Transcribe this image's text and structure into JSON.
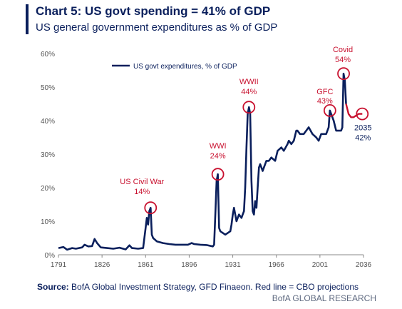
{
  "header": {
    "title": "Chart 5: US govt spending = 41% of GDP",
    "subtitle": "US general government expenditures as % of GDP"
  },
  "footer": {
    "source_label": "Source:",
    "source_text": " BofA Global Investment Strategy, GFD Finaeon. Red line = CBO projections",
    "brand": "BofA GLOBAL RESEARCH"
  },
  "colors": {
    "series": "#0a1f5c",
    "projection": "#c8102e",
    "annotation": "#c8102e",
    "axis": "#888888"
  },
  "chart_data": {
    "type": "line",
    "title": "Chart 5: US govt spending = 41% of GDP",
    "subtitle": "US general government expenditures as % of GDP",
    "xlim": [
      1791,
      2036
    ],
    "ylim": [
      0,
      60
    ],
    "x_ticks": [
      "1791",
      "1826",
      "1861",
      "1896",
      "1931",
      "1966",
      "2001",
      "2036"
    ],
    "y_ticks": [
      "0%",
      "10%",
      "20%",
      "30%",
      "40%",
      "50%",
      "60%"
    ],
    "grid": false,
    "legend": {
      "position": "top-left",
      "entries": [
        "US govt expenditures, % of GDP"
      ]
    },
    "series": [
      {
        "name": "US govt expenditures, % of GDP",
        "color": "#0a1f5c",
        "points": [
          [
            1791,
            2
          ],
          [
            1795,
            2.3
          ],
          [
            1798,
            1.5
          ],
          [
            1802,
            2
          ],
          [
            1805,
            1.8
          ],
          [
            1810,
            2.2
          ],
          [
            1812,
            3
          ],
          [
            1815,
            2.5
          ],
          [
            1818,
            2.6
          ],
          [
            1820,
            4.7
          ],
          [
            1822,
            3.5
          ],
          [
            1825,
            2.2
          ],
          [
            1830,
            2
          ],
          [
            1835,
            1.8
          ],
          [
            1840,
            2.1
          ],
          [
            1845,
            1.6
          ],
          [
            1848,
            2.8
          ],
          [
            1850,
            2
          ],
          [
            1855,
            1.8
          ],
          [
            1859,
            2
          ],
          [
            1861,
            8
          ],
          [
            1862,
            11
          ],
          [
            1863,
            9
          ],
          [
            1864,
            13
          ],
          [
            1865,
            14
          ],
          [
            1866,
            6
          ],
          [
            1867,
            5
          ],
          [
            1870,
            4
          ],
          [
            1875,
            3.5
          ],
          [
            1880,
            3.2
          ],
          [
            1885,
            3
          ],
          [
            1890,
            3
          ],
          [
            1895,
            3
          ],
          [
            1898,
            3.5
          ],
          [
            1900,
            3.2
          ],
          [
            1905,
            3
          ],
          [
            1910,
            2.9
          ],
          [
            1915,
            2.5
          ],
          [
            1916,
            3
          ],
          [
            1917,
            12
          ],
          [
            1918,
            22
          ],
          [
            1919,
            24
          ],
          [
            1920,
            8
          ],
          [
            1921,
            7
          ],
          [
            1925,
            6
          ],
          [
            1929,
            7
          ],
          [
            1930,
            9
          ],
          [
            1931,
            12
          ],
          [
            1932,
            14
          ],
          [
            1934,
            10
          ],
          [
            1936,
            12
          ],
          [
            1938,
            11
          ],
          [
            1939,
            12
          ],
          [
            1940,
            13
          ],
          [
            1941,
            20
          ],
          [
            1942,
            32
          ],
          [
            1943,
            42
          ],
          [
            1944,
            44
          ],
          [
            1945,
            42
          ],
          [
            1946,
            22
          ],
          [
            1947,
            13
          ],
          [
            1948,
            12
          ],
          [
            1949,
            16
          ],
          [
            1950,
            14
          ],
          [
            1951,
            20
          ],
          [
            1952,
            26
          ],
          [
            1953,
            27
          ],
          [
            1955,
            25
          ],
          [
            1958,
            28
          ],
          [
            1960,
            28
          ],
          [
            1962,
            29
          ],
          [
            1965,
            28
          ],
          [
            1967,
            31
          ],
          [
            1970,
            32
          ],
          [
            1972,
            31
          ],
          [
            1975,
            33
          ],
          [
            1976,
            34
          ],
          [
            1978,
            33
          ],
          [
            1980,
            34
          ],
          [
            1982,
            37
          ],
          [
            1983,
            37
          ],
          [
            1985,
            36
          ],
          [
            1988,
            36
          ],
          [
            1990,
            37
          ],
          [
            1992,
            38
          ],
          [
            1995,
            36
          ],
          [
            1998,
            35
          ],
          [
            2000,
            34
          ],
          [
            2002,
            36
          ],
          [
            2004,
            36
          ],
          [
            2006,
            36
          ],
          [
            2008,
            38
          ],
          [
            2009,
            43
          ],
          [
            2010,
            42
          ],
          [
            2012,
            40
          ],
          [
            2014,
            37
          ],
          [
            2016,
            37
          ],
          [
            2018,
            37
          ],
          [
            2019,
            38
          ],
          [
            2020,
            54
          ],
          [
            2021,
            52
          ],
          [
            2022,
            45
          ]
        ]
      },
      {
        "name": "CBO projections",
        "color": "#c8102e",
        "points": [
          [
            2022,
            45
          ],
          [
            2024,
            42
          ],
          [
            2026,
            41
          ],
          [
            2028,
            41
          ],
          [
            2030,
            41.5
          ],
          [
            2032,
            42
          ],
          [
            2035,
            42
          ]
        ]
      }
    ],
    "annotations": [
      {
        "label_line1": "US Civil War",
        "label_line2": "14%",
        "x": 1865,
        "y": 14,
        "color": "#c8102e"
      },
      {
        "label_line1": "WWI",
        "label_line2": "24%",
        "x": 1919,
        "y": 24,
        "color": "#c8102e"
      },
      {
        "label_line1": "WWII",
        "label_line2": "44%",
        "x": 1944,
        "y": 44,
        "color": "#c8102e"
      },
      {
        "label_line1": "GFC",
        "label_line2": "43%",
        "x": 2009,
        "y": 43,
        "color": "#c8102e"
      },
      {
        "label_line1": "Covid",
        "label_line2": "54%",
        "x": 2020,
        "y": 54,
        "color": "#c8102e"
      },
      {
        "label_line1": "2035",
        "label_line2": "42%",
        "x": 2035,
        "y": 42,
        "color": "#c8102e"
      }
    ]
  }
}
